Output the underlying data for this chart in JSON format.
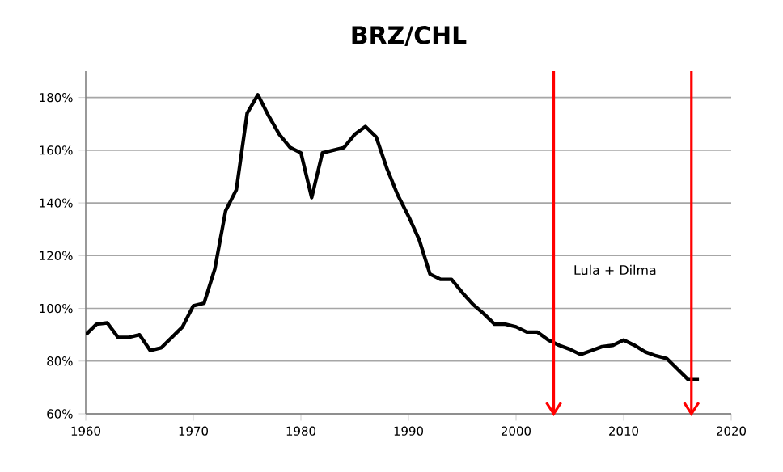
{
  "chart_data": {
    "type": "line",
    "title": "BRZ/CHL",
    "x": [
      1960,
      1961,
      1962,
      1963,
      1964,
      1965,
      1966,
      1967,
      1968,
      1969,
      1970,
      1971,
      1972,
      1973,
      1974,
      1975,
      1976,
      1977,
      1978,
      1979,
      1980,
      1981,
      1982,
      1983,
      1984,
      1985,
      1986,
      1987,
      1988,
      1989,
      1990,
      1991,
      1992,
      1993,
      1994,
      1995,
      1996,
      1997,
      1998,
      1999,
      2000,
      2001,
      2002,
      2003,
      2004,
      2005,
      2006,
      2007,
      2008,
      2009,
      2010,
      2011,
      2012,
      2013,
      2014,
      2015,
      2016,
      2017
    ],
    "series": [
      {
        "color": "#000000",
        "values": [
          90,
          94,
          94.5,
          89,
          89,
          90,
          84,
          85,
          89,
          93,
          101,
          102,
          115,
          137,
          145,
          174,
          181,
          173,
          166,
          161,
          159,
          142,
          159,
          160,
          161,
          166,
          169,
          165,
          153,
          143,
          135,
          126,
          113,
          111,
          111,
          106,
          101.5,
          98,
          94,
          94,
          93,
          91,
          91,
          88,
          86,
          84.5,
          82.5,
          84,
          85.5,
          86,
          88,
          86,
          83.5,
          82,
          81,
          77,
          73,
          73
        ]
      }
    ],
    "xlim": [
      1960,
      2020
    ],
    "xticks": [
      1960,
      1970,
      1980,
      1990,
      2000,
      2010,
      2020
    ],
    "ylim": [
      60,
      190
    ],
    "yticks": [
      {
        "value": 60,
        "label": "60%"
      },
      {
        "value": 80,
        "label": "80%"
      },
      {
        "value": 100,
        "label": "100%"
      },
      {
        "value": 120,
        "label": "120%"
      },
      {
        "value": 140,
        "label": "140%"
      },
      {
        "value": 160,
        "label": "160%"
      },
      {
        "value": 180,
        "label": "180%"
      }
    ],
    "grid": "y",
    "legend": false,
    "marker": "none",
    "line_style": "solid",
    "ref_lines": [
      {
        "axis": "x",
        "value": 2003.5,
        "color": "#ff0000"
      },
      {
        "axis": "x",
        "value": 2016.3,
        "color": "#ff0000"
      }
    ],
    "annotations": [
      "Lula + Dilma"
    ]
  }
}
